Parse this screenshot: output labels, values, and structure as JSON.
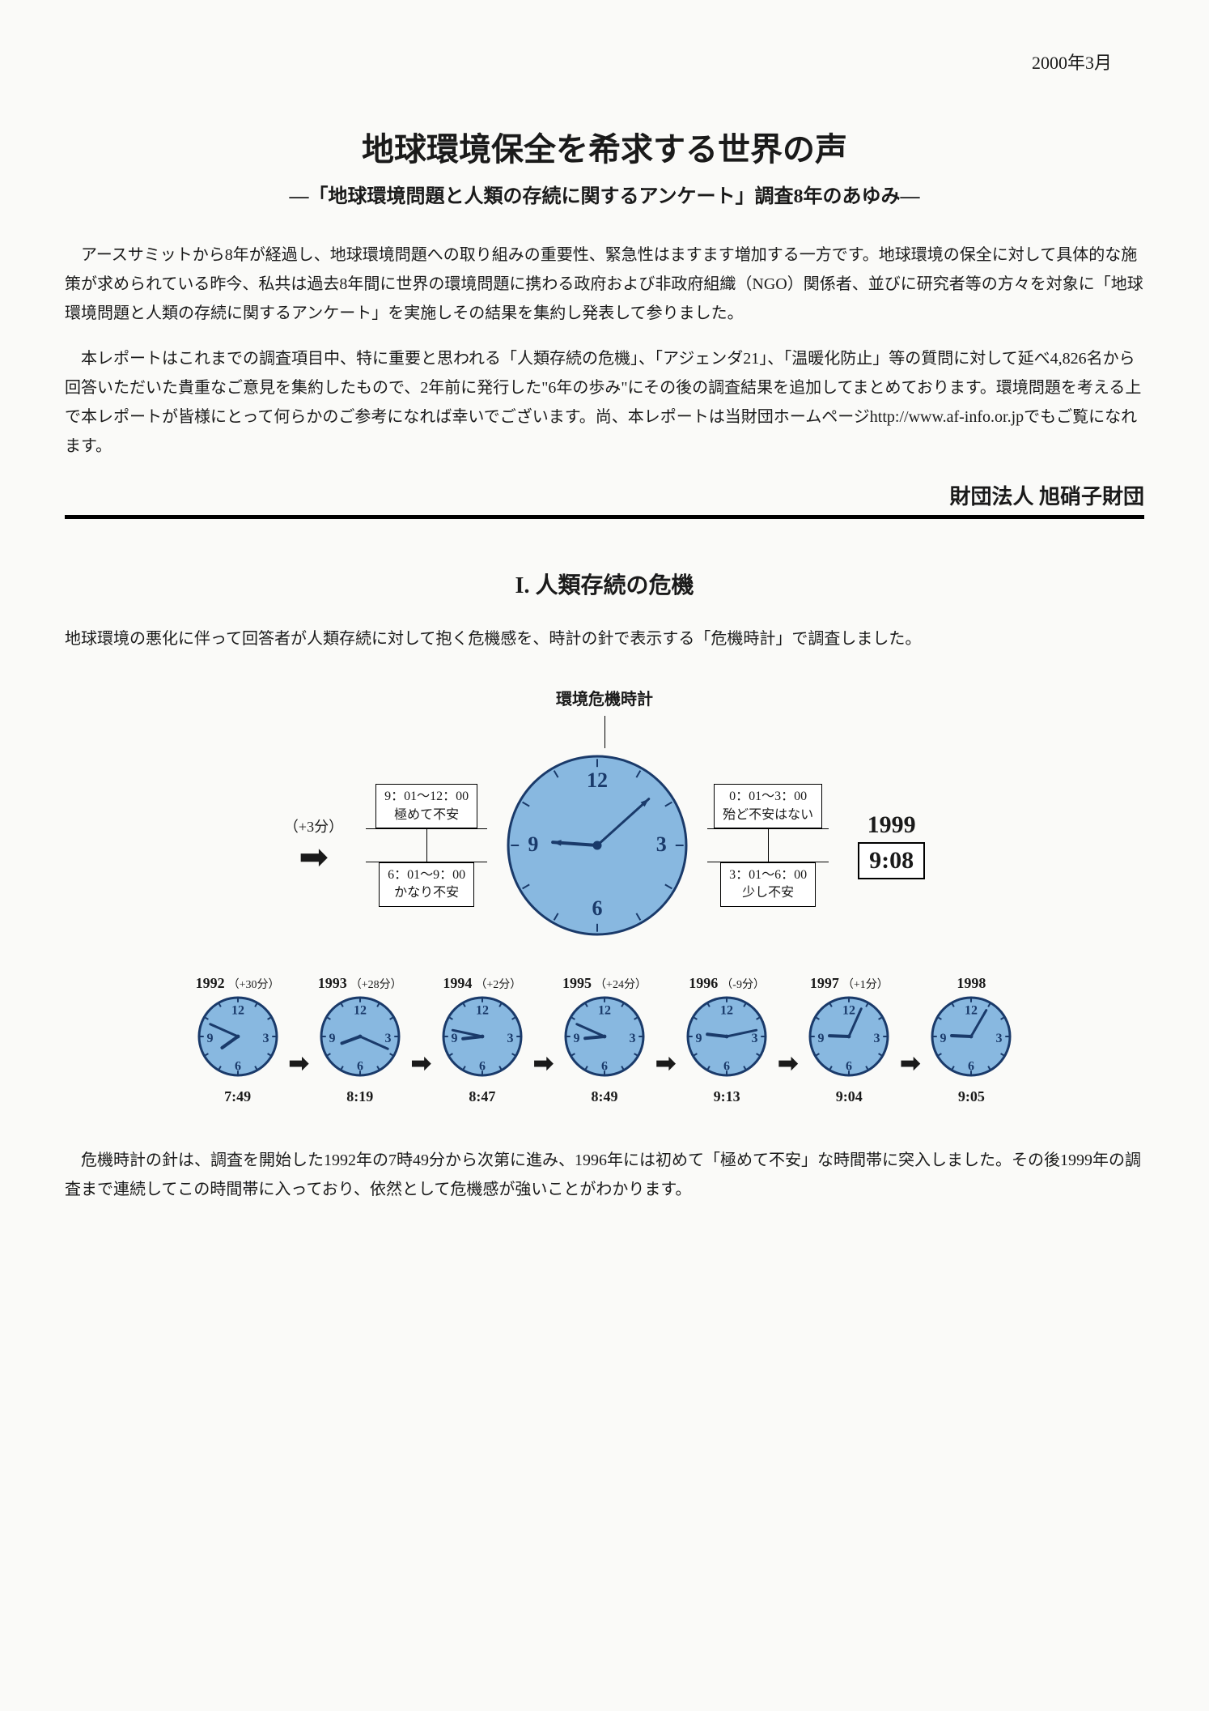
{
  "date": "2000年3月",
  "title": "地球環境保全を希求する世界の声",
  "subtitle": "—「地球環境問題と人類の存続に関するアンケート」調査8年のあゆみ—",
  "paragraph1": "アースサミットから8年が経過し、地球環境問題への取り組みの重要性、緊急性はますます増加する一方です。地球環境の保全に対して具体的な施策が求められている昨今、私共は過去8年間に世界の環境問題に携わる政府および非政府組織（NGO）関係者、並びに研究者等の方々を対象に「地球環境問題と人類の存続に関するアンケート」を実施しその結果を集約し発表して参りました。",
  "paragraph2": "本レポートはこれまでの調査項目中、特に重要と思われる「人類存続の危機」、「アジェンダ21」、「温暖化防止」等の質問に対して延べ4,826名から回答いただいた貴重なご意見を集約したもので、2年前に発行した\"6年の歩み\"にその後の調査結果を追加してまとめております。環境問題を考える上で本レポートが皆様にとって何らかのご参考になれば幸いでございます。尚、本レポートは当財団ホームページhttp://www.af-info.or.jpでもご覧になれます。",
  "org": "財団法人 旭硝子財団",
  "section_title": "I. 人類存続の危機",
  "section_intro": "地球環境の悪化に伴って回答者が人類存続に対して抱く危機感を、時計の針で表示する「危機時計」で調査しました。",
  "diagram": {
    "title": "環境危機時計",
    "plus_label": "（+3分）",
    "q1": {
      "range": "9：01〜12：00",
      "label": "極めて不安"
    },
    "q2": {
      "range": "6：01〜9：00",
      "label": "かなり不安"
    },
    "q3": {
      "range": "0：01〜3：00",
      "label": "殆ど不安はない"
    },
    "q4": {
      "range": "3：01〜6：00",
      "label": "少し不安"
    },
    "current_year": "1999",
    "current_time": "9:08",
    "main_clock": {
      "radius": 110,
      "fill": "#88b8e0",
      "stroke": "#1a3a6a",
      "hour": 9,
      "minute": 8,
      "numerals": {
        "12": "12",
        "3": "3",
        "6": "6",
        "9": "9"
      }
    },
    "small_clock": {
      "radius": 48,
      "fill": "#88b8e0",
      "stroke": "#1a3a6a"
    }
  },
  "timeline": [
    {
      "year": "1992",
      "delta": "（+30分）",
      "time": "7:49",
      "h": 7,
      "m": 49
    },
    {
      "year": "1993",
      "delta": "（+28分）",
      "time": "8:19",
      "h": 8,
      "m": 19
    },
    {
      "year": "1994",
      "delta": "（+2分）",
      "time": "8:47",
      "h": 8,
      "m": 47
    },
    {
      "year": "1995",
      "delta": "（+24分）",
      "time": "8:49",
      "h": 8,
      "m": 49
    },
    {
      "year": "1996",
      "delta": "（-9分）",
      "time": "9:13",
      "h": 9,
      "m": 13
    },
    {
      "year": "1997",
      "delta": "（+1分）",
      "time": "9:04",
      "h": 9,
      "m": 4
    },
    {
      "year": "1998",
      "delta": "",
      "time": "9:05",
      "h": 9,
      "m": 5
    }
  ],
  "closing": "危機時計の針は、調査を開始した1992年の7時49分から次第に進み、1996年には初めて「極めて不安」な時間帯に突入しました。その後1999年の調査まで連続してこの時間帯に入っており、依然として危機感が強いことがわかります。"
}
